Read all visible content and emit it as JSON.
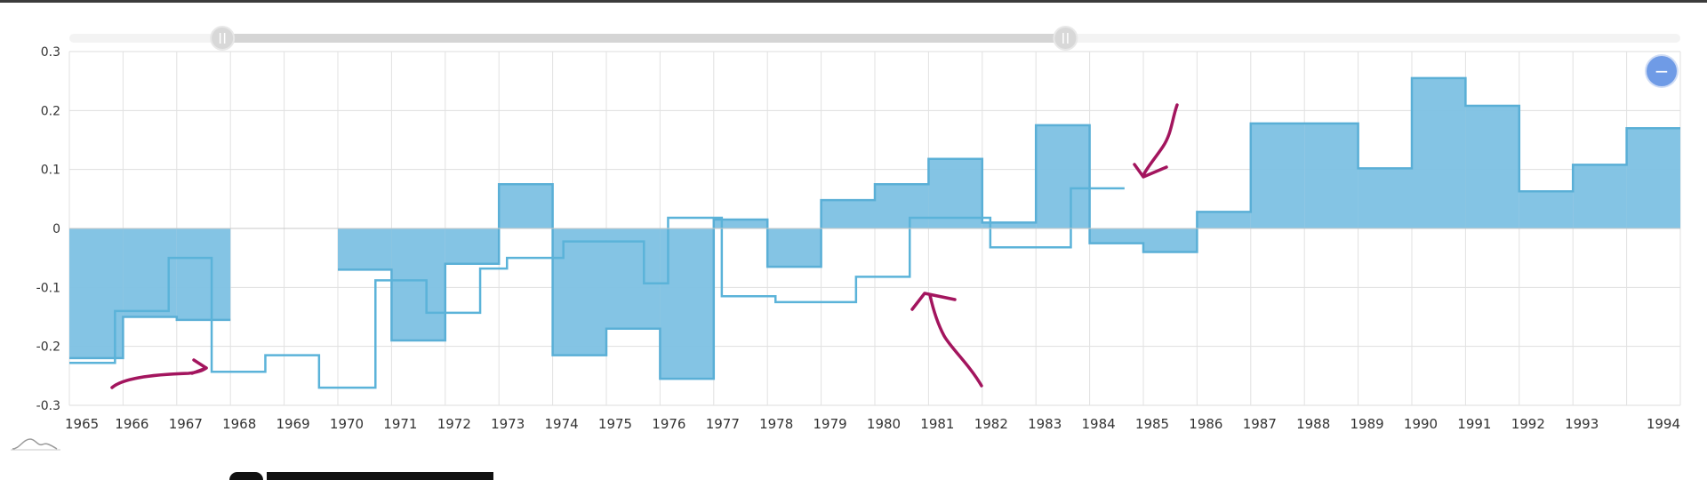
{
  "chart_data": {
    "type": "area",
    "step": true,
    "title": "",
    "xlabel": "",
    "ylabel": "",
    "ylim": [
      -0.3,
      0.3
    ],
    "y_ticks": [
      0.3,
      0.2,
      0.1,
      0,
      -0.1,
      -0.2,
      -0.3
    ],
    "y_tick_labels": [
      "0.3",
      "0.2",
      "0.1",
      "0",
      "-0.1",
      "-0.2",
      "-0.3"
    ],
    "x_tick_labels": [
      "1965",
      "1966",
      "1967",
      "1968",
      "1969",
      "1970",
      "1971",
      "1972",
      "1973",
      "1974",
      "1975",
      "1976",
      "1977",
      "1978",
      "1979",
      "1980",
      "1981",
      "1982",
      "1983",
      "1984",
      "1985",
      "1986",
      "1987",
      "1988",
      "1989",
      "1990",
      "1991",
      "1992",
      "1993",
      "1994"
    ],
    "grid": true,
    "series": [
      {
        "style": "filled-step",
        "color": "#7dc1e3",
        "points": [
          {
            "x": 1965,
            "y": -0.22
          },
          {
            "x": 1966,
            "y": -0.15
          },
          {
            "x": 1967,
            "y": -0.155
          },
          {
            "x": 1968,
            "y": null
          },
          {
            "x": 1969,
            "y": null
          },
          {
            "x": 1970,
            "y": -0.07
          },
          {
            "x": 1971,
            "y": -0.19
          },
          {
            "x": 1972,
            "y": -0.06
          },
          {
            "x": 1973,
            "y": 0.075
          },
          {
            "x": 1974,
            "y": -0.215
          },
          {
            "x": 1975,
            "y": -0.17
          },
          {
            "x": 1976,
            "y": -0.255
          },
          {
            "x": 1977,
            "y": 0.015
          },
          {
            "x": 1978,
            "y": -0.065
          },
          {
            "x": 1979,
            "y": 0.048
          },
          {
            "x": 1980,
            "y": 0.075
          },
          {
            "x": 1981,
            "y": 0.118
          },
          {
            "x": 1982,
            "y": 0.01
          },
          {
            "x": 1983,
            "y": 0.175
          },
          {
            "x": 1984,
            "y": -0.025
          },
          {
            "x": 1985,
            "y": -0.04
          },
          {
            "x": 1986,
            "y": 0.028
          },
          {
            "x": 1987,
            "y": 0.178
          },
          {
            "x": 1988,
            "y": 0.178
          },
          {
            "x": 1989,
            "y": 0.102
          },
          {
            "x": 1990,
            "y": 0.255
          },
          {
            "x": 1991,
            "y": 0.208
          },
          {
            "x": 1992,
            "y": 0.063
          },
          {
            "x": 1993,
            "y": 0.108
          },
          {
            "x": 1994,
            "y": 0.17
          }
        ]
      },
      {
        "style": "line-step",
        "color": "#5bb3d9",
        "points": [
          {
            "x": 1965,
            "y": -0.228
          },
          {
            "x": 1965.85,
            "y": -0.14
          },
          {
            "x": 1966.85,
            "y": -0.05
          },
          {
            "x": 1967.65,
            "y": -0.243
          },
          {
            "x": 1968.65,
            "y": -0.215
          },
          {
            "x": 1969.65,
            "y": -0.27
          },
          {
            "x": 1970.7,
            "y": -0.088
          },
          {
            "x": 1971.65,
            "y": -0.143
          },
          {
            "x": 1972.65,
            "y": -0.068
          },
          {
            "x": 1973.15,
            "y": -0.05
          },
          {
            "x": 1974.2,
            "y": -0.022
          },
          {
            "x": 1975.7,
            "y": -0.093
          },
          {
            "x": 1976.15,
            "y": 0.018
          },
          {
            "x": 1977.15,
            "y": -0.115
          },
          {
            "x": 1978.15,
            "y": -0.125
          },
          {
            "x": 1979.65,
            "y": -0.082
          },
          {
            "x": 1980.65,
            "y": 0.018
          },
          {
            "x": 1982.15,
            "y": -0.032
          },
          {
            "x": 1983.65,
            "y": 0.068
          },
          {
            "x": 1984.65,
            "y": null
          }
        ]
      }
    ]
  },
  "navigator": {
    "range_start": 1967.85,
    "range_end": 1983.55
  },
  "controls": {
    "zoom_out_symbol": "−"
  },
  "annotations": {
    "color": "#a3155e"
  }
}
